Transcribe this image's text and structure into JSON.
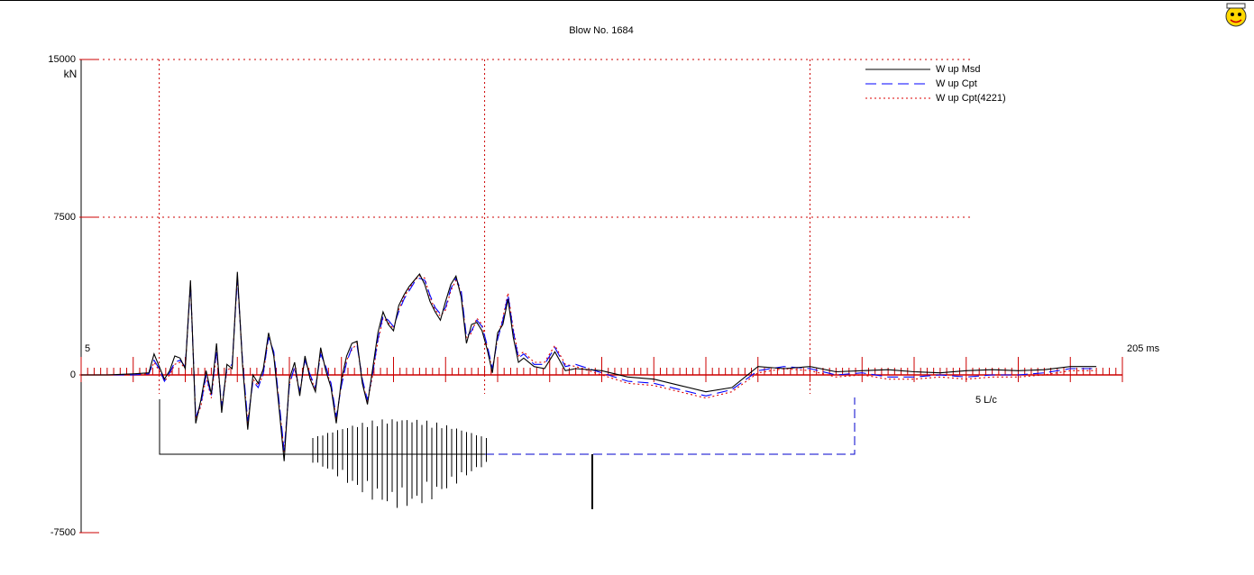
{
  "chart_data": {
    "type": "line",
    "title": "Blow No. 1684",
    "ylabel": "kN",
    "annotation": "5 L/c",
    "xlim": [
      5,
      205
    ],
    "xticks": [
      5,
      {
        "value": 205,
        "label": "205 ms"
      }
    ],
    "ylim": [
      -7500,
      15000
    ],
    "yticks": [
      15000,
      7500,
      0,
      -7500
    ],
    "grid": true,
    "vlines": [
      20,
      82.5,
      145
    ],
    "legend": "top-right",
    "x": [
      5,
      10,
      15,
      18,
      19,
      20,
      21,
      22,
      23,
      24,
      25,
      26,
      27,
      28,
      29,
      30,
      31,
      32,
      33,
      34,
      35,
      36,
      37,
      38,
      39,
      40,
      41,
      42,
      43,
      44,
      45,
      46,
      47,
      48,
      49,
      50,
      51,
      52,
      53,
      54,
      55,
      56,
      57,
      58,
      59,
      60,
      61,
      62,
      63,
      64,
      65,
      66,
      67,
      68,
      69,
      70,
      71,
      72,
      73,
      74,
      75,
      76,
      77,
      78,
      79,
      80,
      81,
      82,
      83,
      84,
      85,
      86,
      87,
      88,
      89,
      90,
      92,
      94,
      96,
      98,
      100,
      105,
      110,
      115,
      120,
      125,
      130,
      135,
      140,
      145,
      150,
      155,
      160,
      165,
      170,
      175,
      180,
      185,
      190,
      195,
      200
    ],
    "series": [
      {
        "name": "W up Msd",
        "color": "#000000",
        "dash": "solid",
        "values": [
          0,
          0,
          50,
          100,
          1000,
          400,
          -200,
          200,
          900,
          800,
          300,
          4500,
          -2300,
          -1200,
          200,
          -900,
          1500,
          -1800,
          500,
          300,
          4900,
          500,
          -2600,
          0,
          -400,
          300,
          2000,
          900,
          -1500,
          -4100,
          -200,
          600,
          -1000,
          900,
          -200,
          -800,
          1300,
          200,
          -600,
          -2300,
          -200,
          900,
          1500,
          1600,
          -400,
          -1400,
          300,
          2000,
          3000,
          2400,
          2100,
          3300,
          3800,
          4200,
          4500,
          4800,
          4300,
          3500,
          3000,
          2600,
          3500,
          4300,
          4700,
          3700,
          1500,
          2400,
          2500,
          2100,
          1200,
          100,
          2000,
          2400,
          3600,
          1800,
          600,
          800,
          400,
          300,
          1100,
          200,
          300,
          200,
          -100,
          -200,
          -500,
          -800,
          -600,
          400,
          300,
          400,
          150,
          200,
          250,
          150,
          100,
          200,
          250,
          200,
          250,
          400,
          400
        ]
      },
      {
        "name": "W up Cpt",
        "color": "#0000ff",
        "dash": "dashed",
        "values": [
          0,
          0,
          0,
          50,
          700,
          300,
          -300,
          100,
          600,
          700,
          400,
          4300,
          -2000,
          -1400,
          0,
          -1000,
          1200,
          -1500,
          300,
          500,
          4600,
          700,
          -2200,
          -300,
          -600,
          100,
          1800,
          1100,
          -1200,
          -3600,
          -500,
          400,
          -800,
          700,
          0,
          -600,
          1000,
          400,
          -400,
          -2000,
          -500,
          600,
          1300,
          1400,
          -200,
          -1200,
          100,
          1700,
          2800,
          2600,
          2300,
          3000,
          3600,
          4000,
          4400,
          4600,
          4500,
          3800,
          3200,
          2900,
          3200,
          4100,
          4600,
          4000,
          1800,
          2100,
          2600,
          2300,
          1400,
          300,
          1700,
          2600,
          3800,
          2100,
          800,
          1000,
          500,
          500,
          1300,
          400,
          500,
          100,
          -300,
          -400,
          -700,
          -1000,
          -700,
          200,
          400,
          300,
          0,
          100,
          -100,
          -100,
          0,
          -100,
          0,
          0,
          100,
          300,
          300
        ]
      },
      {
        "name": "W up Cpt(4221)",
        "color": "#dd0000",
        "dash": "dotted",
        "values": [
          0,
          0,
          0,
          50,
          600,
          200,
          -300,
          0,
          500,
          600,
          300,
          4400,
          -2100,
          -1500,
          -100,
          -1100,
          1100,
          -1600,
          200,
          400,
          4700,
          600,
          -2300,
          -200,
          -500,
          0,
          1900,
          1000,
          -1300,
          -3700,
          -400,
          300,
          -900,
          800,
          -100,
          -700,
          1100,
          300,
          -500,
          -2100,
          -400,
          700,
          1200,
          1500,
          -300,
          -1300,
          0,
          1600,
          2700,
          2500,
          2200,
          3100,
          3700,
          4100,
          4500,
          4700,
          4600,
          3700,
          3100,
          2800,
          3100,
          4000,
          4500,
          3900,
          1700,
          2000,
          2700,
          2400,
          1300,
          200,
          1800,
          2700,
          3900,
          2200,
          900,
          1100,
          600,
          600,
          1400,
          500,
          400,
          0,
          -400,
          -500,
          -800,
          -1100,
          -800,
          100,
          300,
          200,
          -100,
          0,
          -200,
          -200,
          -100,
          -200,
          -100,
          -100,
          0,
          200,
          200
        ]
      }
    ]
  }
}
